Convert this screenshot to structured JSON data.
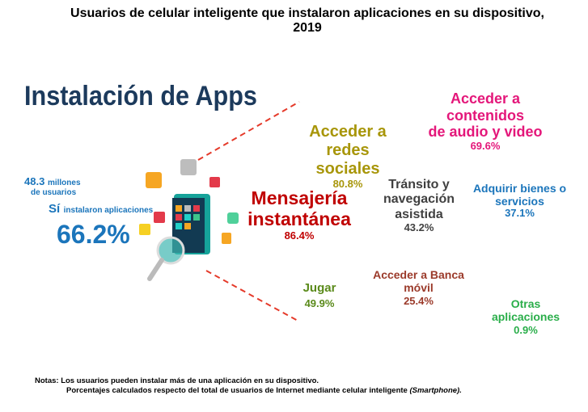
{
  "title_line1": "Usuarios de celular inteligente que instalaron aplicaciones en su dispositivo,",
  "title_line2": "2019",
  "heading": "Instalación de Apps",
  "summary": {
    "users_number": "48.3",
    "users_unit": "millones",
    "users_line2": "de usuarios",
    "si": "Sí",
    "si_rest": "instalaron aplicaciones",
    "percent": "66.2%",
    "color": "#1b75bb"
  },
  "categories": [
    {
      "l1": "Acceder a",
      "l2": "redes sociales",
      "l3": "",
      "value": "80.8%",
      "color": "#a8960a"
    },
    {
      "l1": "Acceder a",
      "l2": "contenidos",
      "l3": "de audio y video",
      "value": "69.6%",
      "color": "#e4177a"
    },
    {
      "l1": "Mensajería",
      "l2": "instantánea",
      "l3": "",
      "value": "86.4%",
      "color": "#c00000"
    },
    {
      "l1": "Tránsito y",
      "l2": "navegación",
      "l3": "asistida",
      "value": "43.2%",
      "color": "#404040"
    },
    {
      "l1": "Adquirir bienes o",
      "l2": "servicios",
      "l3": "",
      "value": "37.1%",
      "color": "#1b75bb"
    },
    {
      "l1": "Jugar",
      "l2": "",
      "l3": "",
      "value": "49.9%",
      "color": "#5a8a1a"
    },
    {
      "l1": "Acceder a Banca",
      "l2": "móvil",
      "l3": "",
      "value": "25.4%",
      "color": "#9b3a2a"
    },
    {
      "l1": "Otras",
      "l2": "aplicaciones",
      "l3": "",
      "value": "0.9%",
      "color": "#2aae4a"
    }
  ],
  "notes": {
    "line1": "Notas: Los usuarios pueden instalar más de una aplicación en su dispositivo.",
    "line2": "Porcentajes calculados respecto del total de usuarios de Internet mediante celular inteligente",
    "line2_italic": "(Smartphone)."
  }
}
